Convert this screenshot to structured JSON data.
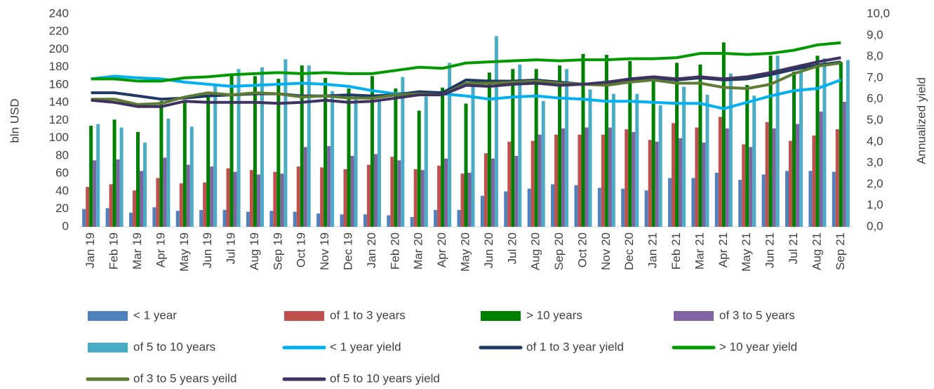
{
  "chart_data": {
    "type": "bar_line",
    "ylabel": "bln USD",
    "y2label": "Annualized yield",
    "categories": [
      "Jan 19",
      "Feb 19",
      "Mar 19",
      "Apr 19",
      "May 19",
      "Jun 19",
      "Jul 19",
      "Aug 19",
      "Sep 19",
      "Oct 19",
      "Nov 19",
      "Dec 19",
      "Jan 20",
      "Feb 20",
      "Mar 20",
      "Apr 20",
      "May 20",
      "Jun 20",
      "Jul 20",
      "Aug 20",
      "Sep 20",
      "Oct 20",
      "Nov 20",
      "Dec 20",
      "Jan 21",
      "Feb 21",
      "Mar 21",
      "Apr 21",
      "May 21",
      "Jun 21",
      "Jul 21",
      "Aug 21",
      "Sep 21"
    ],
    "ylim": [
      0,
      240
    ],
    "yticks": [
      0,
      20,
      40,
      60,
      80,
      100,
      120,
      140,
      160,
      180,
      200,
      220,
      240
    ],
    "y2lim": [
      0,
      10
    ],
    "y2ticks": [
      {
        "value": 0,
        "label": "0,0"
      },
      {
        "value": 1,
        "label": "1,0"
      },
      {
        "value": 2,
        "label": "2,0"
      },
      {
        "value": 3,
        "label": "3,0"
      },
      {
        "value": 4,
        "label": "4,0"
      },
      {
        "value": 5,
        "label": "5,0"
      },
      {
        "value": 6,
        "label": "6,0"
      },
      {
        "value": 7,
        "label": "7,0"
      },
      {
        "value": 8,
        "label": "8,0"
      },
      {
        "value": 9,
        "label": "9,0"
      },
      {
        "value": 10,
        "label": "10,0"
      }
    ],
    "series": [
      {
        "name": "< 1 year",
        "type": "bar",
        "color": "#4f81bd",
        "values": [
          20,
          21,
          16,
          22,
          18,
          19,
          19,
          17,
          18,
          17,
          15,
          14,
          14,
          13,
          11,
          19,
          19,
          35,
          40,
          43,
          48,
          47,
          44,
          43,
          41,
          55,
          55,
          61,
          53,
          59,
          63,
          63,
          62
        ]
      },
      {
        "name": "of 1 to 3 years",
        "type": "bar",
        "color": "#c0504d",
        "values": [
          45,
          48,
          41,
          55,
          49,
          50,
          66,
          64,
          62,
          68,
          67,
          65,
          70,
          79,
          65,
          69,
          60,
          83,
          96,
          97,
          104,
          104,
          104,
          110,
          98,
          117,
          112,
          124,
          93,
          118,
          97,
          103,
          110
        ]
      },
      {
        "name": "> 10 years",
        "type": "bar",
        "color": "#008000",
        "values": [
          114,
          121,
          107,
          142,
          140,
          147,
          172,
          170,
          167,
          182,
          168,
          156,
          170,
          156,
          131,
          157,
          139,
          174,
          178,
          178,
          182,
          195,
          194,
          187,
          165,
          185,
          183,
          208,
          160,
          193,
          175,
          193,
          186
        ]
      },
      {
        "name": "of 3 to 5 years",
        "type": "bar",
        "color": "#8064a2",
        "values": [
          75,
          76,
          63,
          78,
          70,
          68,
          62,
          59,
          60,
          90,
          91,
          80,
          82,
          75,
          64,
          77,
          61,
          77,
          80,
          104,
          111,
          112,
          112,
          107,
          96,
          100,
          95,
          111,
          90,
          111,
          116,
          130,
          141
        ]
      },
      {
        "name": "of 5 to 10 years",
        "type": "bar",
        "color": "#4bacc6",
        "values": [
          116,
          112,
          95,
          122,
          113,
          160,
          178,
          180,
          189,
          182,
          153,
          146,
          143,
          169,
          147,
          185,
          165,
          215,
          183,
          142,
          178,
          155,
          150,
          150,
          137,
          158,
          149,
          173,
          148,
          193,
          175,
          190,
          188
        ]
      },
      {
        "name": "< 1 year yield",
        "type": "line",
        "axis": "y2",
        "color": "#00b0f0",
        "values": [
          6.95,
          7.08,
          7.0,
          6.95,
          6.8,
          6.7,
          6.6,
          6.65,
          6.7,
          6.75,
          6.7,
          6.6,
          6.4,
          6.25,
          6.3,
          6.25,
          6.15,
          6.0,
          6.1,
          6.15,
          6.05,
          6.0,
          5.9,
          5.9,
          5.85,
          5.8,
          5.8,
          5.55,
          5.85,
          6.15,
          6.4,
          6.5,
          6.9
        ]
      },
      {
        "name": "of 1 to 3 year yield",
        "type": "line",
        "axis": "y2",
        "color": "#203864",
        "values": [
          6.3,
          6.3,
          6.15,
          6.0,
          6.05,
          6.15,
          6.2,
          6.25,
          6.25,
          6.15,
          6.15,
          6.2,
          6.15,
          6.2,
          6.35,
          6.3,
          6.9,
          6.85,
          6.85,
          6.9,
          6.8,
          6.7,
          6.75,
          6.85,
          7.0,
          6.9,
          7.0,
          6.9,
          6.95,
          7.15,
          7.4,
          7.6,
          7.75
        ]
      },
      {
        "name": "> 10 year yield",
        "type": "line",
        "axis": "y2",
        "color": "#009a00",
        "values": [
          6.95,
          6.95,
          6.85,
          6.85,
          7.0,
          7.05,
          7.15,
          7.2,
          7.25,
          7.2,
          7.25,
          7.2,
          7.2,
          7.35,
          7.5,
          7.45,
          7.7,
          7.75,
          7.8,
          7.85,
          7.8,
          7.85,
          7.85,
          7.9,
          7.9,
          7.95,
          8.15,
          8.15,
          8.1,
          8.15,
          8.3,
          8.55,
          8.65
        ]
      },
      {
        "name": "of 3 to 5 years yeild",
        "type": "line",
        "axis": "y2",
        "color": "#5e7b34",
        "values": [
          6.0,
          6.0,
          5.75,
          5.8,
          6.1,
          6.3,
          6.2,
          6.3,
          6.25,
          6.1,
          6.15,
          6.05,
          6.05,
          6.2,
          6.25,
          6.2,
          6.75,
          6.75,
          6.8,
          6.85,
          6.75,
          6.7,
          6.65,
          6.8,
          6.9,
          6.75,
          6.75,
          6.55,
          6.5,
          6.7,
          7.2,
          7.55,
          7.7
        ]
      },
      {
        "name": "of 5 to 10 years yield",
        "type": "line",
        "axis": "y2",
        "color": "#3f3160",
        "values": [
          5.95,
          5.85,
          5.65,
          5.65,
          5.9,
          5.85,
          5.85,
          5.85,
          5.8,
          5.85,
          5.95,
          5.85,
          5.9,
          6.05,
          6.2,
          6.2,
          6.65,
          6.6,
          6.7,
          6.75,
          6.65,
          6.7,
          6.8,
          6.95,
          7.05,
          6.95,
          7.05,
          6.95,
          7.05,
          7.25,
          7.5,
          7.75,
          7.95
        ]
      }
    ]
  }
}
